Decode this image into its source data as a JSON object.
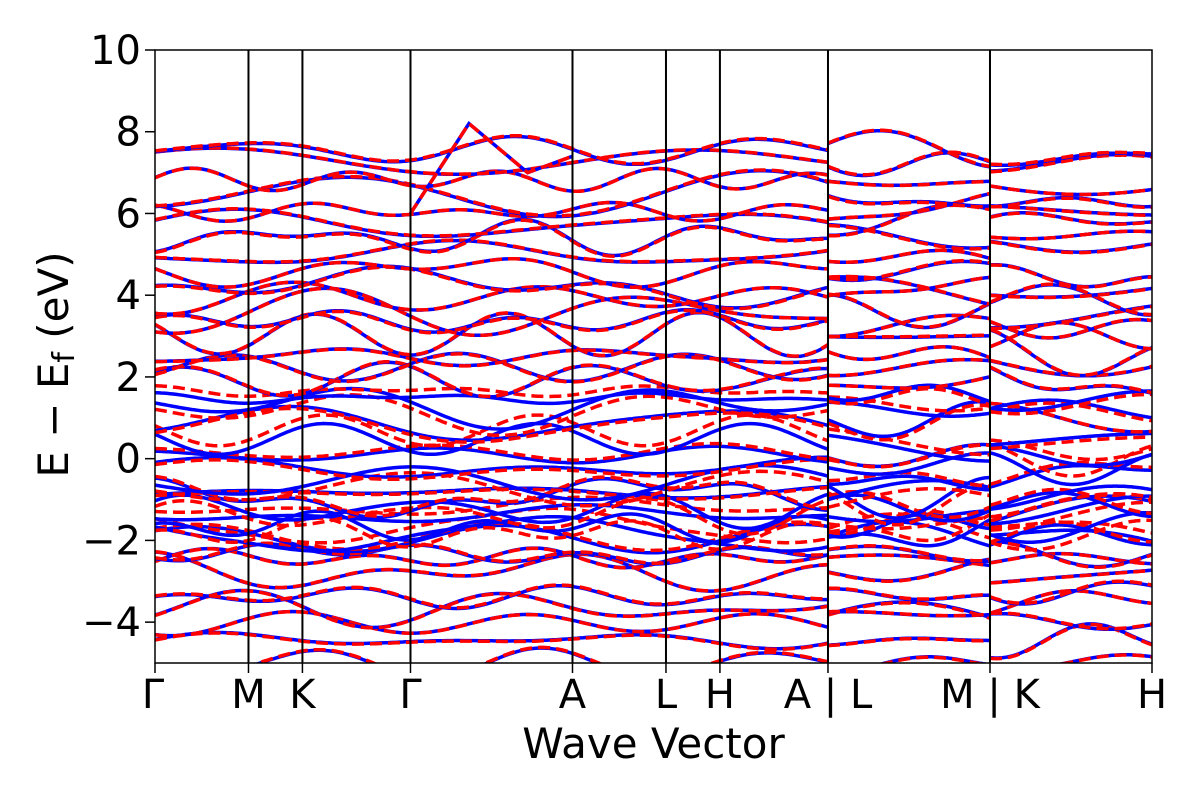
{
  "chart_data": {
    "type": "line",
    "title": "",
    "xlabel": "Wave Vector",
    "ylabel_main": "E − E",
    "ylabel_sub": "f",
    "ylabel_unit": " (eV)",
    "ylim": [
      -5,
      10
    ],
    "yticks": [
      -4,
      -2,
      0,
      2,
      4,
      6,
      8,
      10
    ],
    "ytick_labels": [
      "−4",
      "−2",
      "0",
      "2",
      "4",
      "6",
      "8",
      "10"
    ],
    "k_path_ticks": [
      {
        "label": "Γ",
        "pos": 0.0
      },
      {
        "label": "M",
        "pos": 0.577
      },
      {
        "label": "K",
        "pos": 0.91
      },
      {
        "label": "Γ",
        "pos": 1.577
      },
      {
        "label": "A",
        "pos": 2.577
      },
      {
        "label": "L",
        "pos": 3.154
      },
      {
        "label": "H",
        "pos": 3.487
      },
      {
        "label": "A | L",
        "pos": 4.154
      },
      {
        "label": "M | K",
        "pos": 5.154
      },
      {
        "label": "H",
        "pos": 6.154
      }
    ],
    "xlim": [
      0,
      6.154
    ],
    "legend": "none",
    "grid": false,
    "series": [
      {
        "style": "solid",
        "color": "#0000ff"
      },
      {
        "style": "dashed",
        "color": "#ff0000"
      }
    ],
    "band_levels": [
      -4.95,
      -4.5,
      -4.0,
      -3.7,
      -3.3,
      -2.8,
      -2.5,
      -2.3,
      -2.0,
      -1.8,
      -1.6,
      -1.4,
      -1.2,
      -1.0,
      -0.9,
      -0.5,
      -0.2,
      0.1,
      0.4,
      0.9,
      1.2,
      1.5,
      1.9,
      2.3,
      2.6,
      3.0,
      3.3,
      3.6,
      3.9,
      4.2,
      4.6,
      5.0,
      5.4,
      5.8,
      6.1,
      6.4,
      6.8,
      7.2,
      7.5
    ],
    "special_feature": {
      "x": 1.938,
      "y": 8.2
    }
  }
}
